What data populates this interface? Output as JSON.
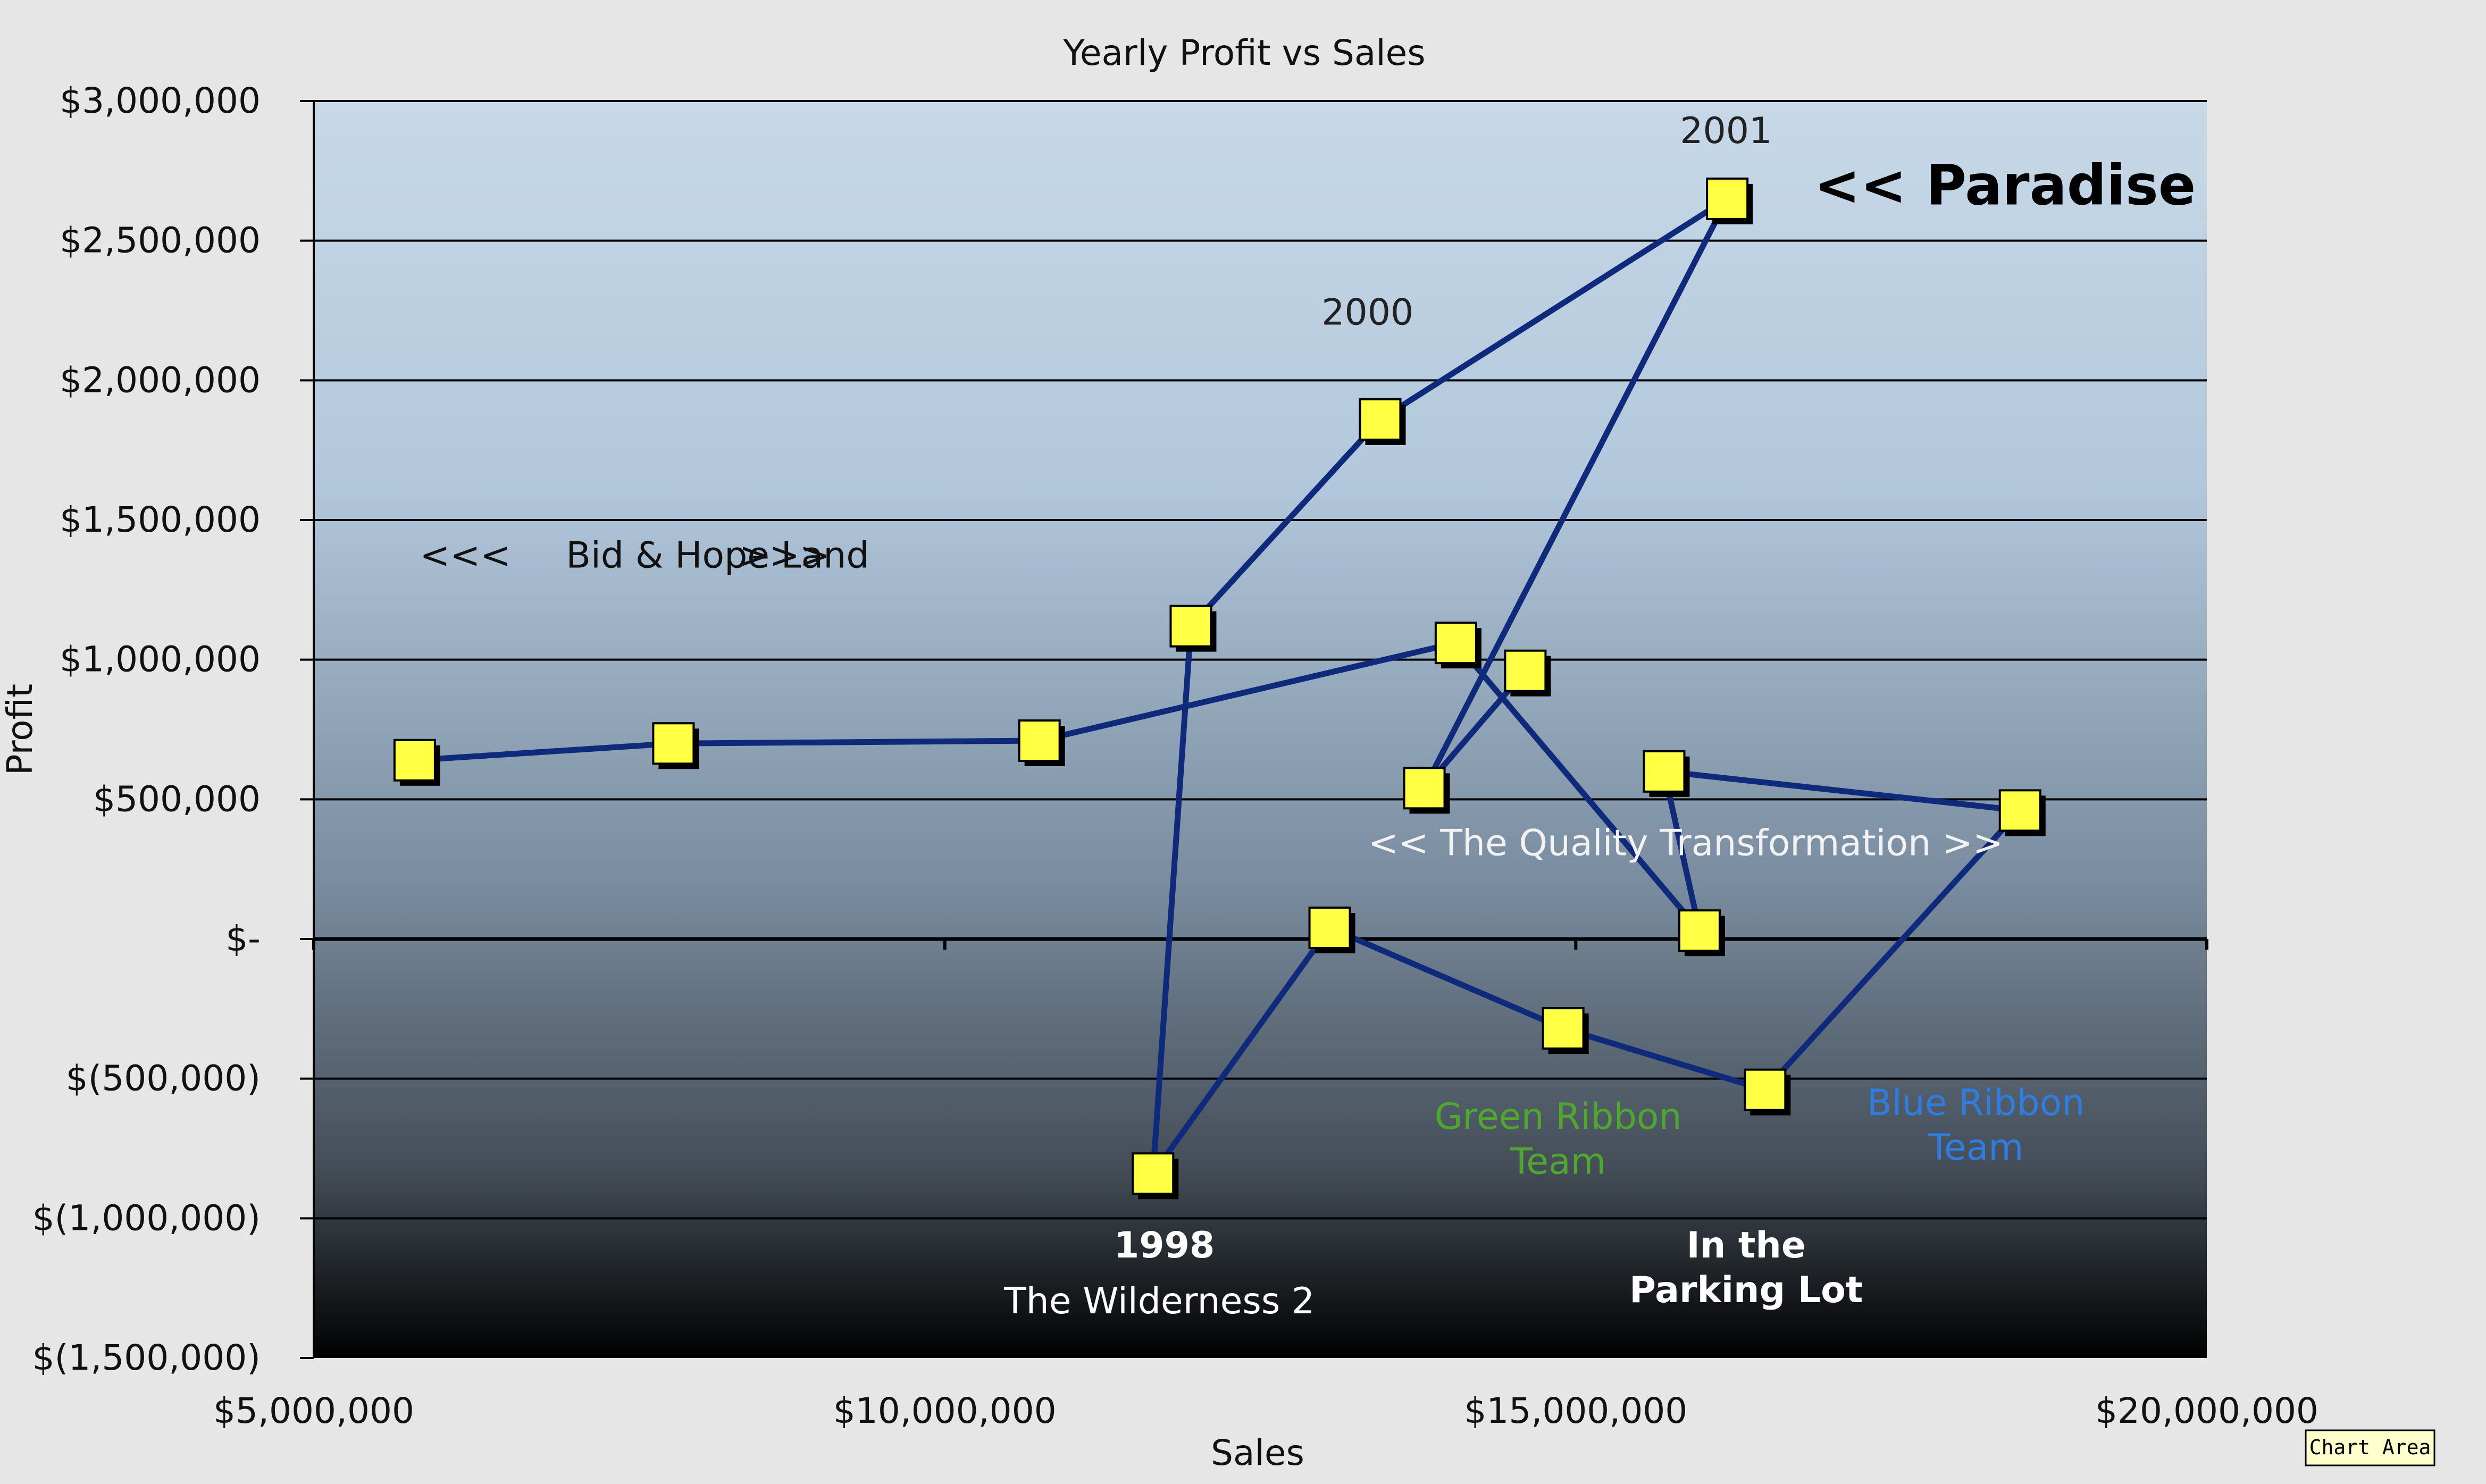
{
  "chart_data": {
    "type": "scatter",
    "title": "Yearly Profit vs Sales",
    "xlabel": "Sales",
    "ylabel": "Profit",
    "xlim": [
      5000000,
      20000000
    ],
    "ylim": [
      -1500000,
      3000000
    ],
    "x_ticks": [
      5000000,
      10000000,
      15000000,
      20000000
    ],
    "x_tick_labels": [
      "$5,000,000",
      "$10,000,000",
      "$15,000,000",
      "$20,000,000"
    ],
    "y_ticks": [
      3000000,
      2500000,
      2000000,
      1500000,
      1000000,
      500000,
      0,
      -500000,
      -1000000,
      -1500000
    ],
    "y_tick_labels": [
      "$3,000,000",
      "$2,500,000",
      "$2,000,000",
      "$1,500,000",
      "$1,000,000",
      "$500,000",
      "$-",
      "$(500,000)",
      "$(1,000,000)",
      "$(1,500,000)"
    ],
    "grid": true,
    "legend": "none",
    "series": [
      {
        "points": [
          {
            "x": 5800000,
            "y": 640000
          },
          {
            "x": 7850000,
            "y": 700000
          },
          {
            "x": 10750000,
            "y": 710000
          },
          {
            "x": 14050000,
            "y": 1060000
          },
          {
            "x": 15980000,
            "y": 30000
          },
          {
            "x": 15700000,
            "y": 600000
          },
          {
            "x": 18520000,
            "y": 460000
          },
          {
            "x": 16500000,
            "y": -540000
          },
          {
            "x": 14900000,
            "y": -320000
          },
          {
            "x": 13050000,
            "y": 40000
          },
          {
            "x": 11650000,
            "y": -840000
          },
          {
            "x": 11950000,
            "y": 1120000
          },
          {
            "x": 13450000,
            "y": 1860000
          },
          {
            "x": 16200000,
            "y": 2650000
          },
          {
            "x": 13800000,
            "y": 540000
          },
          {
            "x": 14600000,
            "y": 960000
          }
        ]
      }
    ],
    "annotations": [
      {
        "id": "bid-left",
        "text": "<<<",
        "x": 6200000,
        "y": 1330000,
        "color": "#111111",
        "weight": "normal",
        "size": "regular"
      },
      {
        "id": "bid-label",
        "text": "Bid & Hope Land",
        "x": 8200000,
        "y": 1330000,
        "color": "#111111",
        "weight": "normal",
        "size": "regular"
      },
      {
        "id": "bid-right",
        "text": ">>>",
        "x": 8730000,
        "y": 1330000,
        "color": "#111111",
        "weight": "normal",
        "size": "regular"
      },
      {
        "id": "paradise",
        "text": "<< Paradise",
        "x": 18400000,
        "y": 2630000,
        "color": "#000000",
        "weight": "bold",
        "size": "large"
      },
      {
        "id": "year-2001",
        "text": "2001",
        "x": 16190000,
        "y": 2850000,
        "color": "#222222",
        "weight": "normal",
        "size": "regular"
      },
      {
        "id": "year-2000",
        "text": "2000",
        "x": 13350000,
        "y": 2200000,
        "color": "#222222",
        "weight": "normal",
        "size": "regular"
      },
      {
        "id": "quality",
        "text": "<< The Quality Transformation >>",
        "x": 15870000,
        "y": 300000,
        "color": "#f2f2f2",
        "weight": "normal",
        "size": "regular"
      },
      {
        "id": "green-1",
        "text": "Green Ribbon",
        "x": 14860000,
        "y": -680000,
        "color": "#4fa82e",
        "weight": "normal",
        "size": "regular"
      },
      {
        "id": "green-2",
        "text": "Team",
        "x": 14860000,
        "y": -840000,
        "color": "#4fa82e",
        "weight": "normal",
        "size": "regular"
      },
      {
        "id": "blue-1",
        "text": "Blue Ribbon",
        "x": 18170000,
        "y": -630000,
        "color": "#2f7de0",
        "weight": "normal",
        "size": "regular"
      },
      {
        "id": "blue-2",
        "text": "Team",
        "x": 18170000,
        "y": -790000,
        "color": "#2f7de0",
        "weight": "normal",
        "size": "regular"
      },
      {
        "id": "year-1998",
        "text": "1998",
        "x": 11740000,
        "y": -1140000,
        "color": "#ffffff",
        "weight": "bold",
        "size": "regular"
      },
      {
        "id": "wilderness",
        "text": "The Wilderness 2",
        "x": 11700000,
        "y": -1340000,
        "color": "#ffffff",
        "weight": "normal",
        "size": "regular"
      },
      {
        "id": "parking-1",
        "text": "In the",
        "x": 16350000,
        "y": -1140000,
        "color": "#ffffff",
        "weight": "bold",
        "size": "regular"
      },
      {
        "id": "parking-2",
        "text": "Parking Lot",
        "x": 16350000,
        "y": -1300000,
        "color": "#ffffff",
        "weight": "bold",
        "size": "regular"
      }
    ]
  },
  "ui": {
    "chart_area_tooltip": "Chart Area"
  },
  "colors": {
    "line": "#0f2a7a",
    "marker_fill": "#ffff44",
    "marker_shadow": "#000000",
    "plot_gradient": [
      "#c7d9e8",
      "#b3c8dc",
      "#7a8da0",
      "#444d57",
      "#000000"
    ]
  }
}
